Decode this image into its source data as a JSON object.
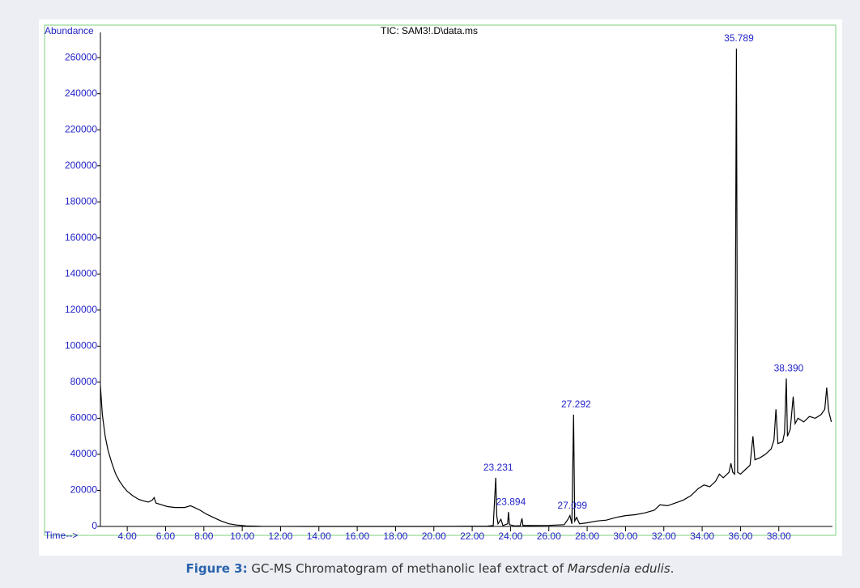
{
  "chart_data": {
    "type": "line",
    "title": "TIC: SAM3!.D\\data.ms",
    "y_label": "Abundance",
    "x_label": "Time-->",
    "color": "#000000",
    "xlim": [
      2.6,
      40.8
    ],
    "ylim": [
      0,
      274000
    ],
    "xticks": [
      {
        "value": 4,
        "label": "4.00"
      },
      {
        "value": 6,
        "label": "6.00"
      },
      {
        "value": 8,
        "label": "8.00"
      },
      {
        "value": 10,
        "label": "10.00"
      },
      {
        "value": 12,
        "label": "12.00"
      },
      {
        "value": 14,
        "label": "14.00"
      },
      {
        "value": 16,
        "label": "16.00"
      },
      {
        "value": 18,
        "label": "18.00"
      },
      {
        "value": 20,
        "label": "20.00"
      },
      {
        "value": 22,
        "label": "22.00"
      },
      {
        "value": 24,
        "label": "24.00"
      },
      {
        "value": 26,
        "label": "26.00"
      },
      {
        "value": 28,
        "label": "28.00"
      },
      {
        "value": 30,
        "label": "30.00"
      },
      {
        "value": 32,
        "label": "32.00"
      },
      {
        "value": 34,
        "label": "34.00"
      },
      {
        "value": 36,
        "label": "36.00"
      },
      {
        "value": 38,
        "label": "38.00"
      }
    ],
    "yticks": [
      0,
      20000,
      40000,
      60000,
      80000,
      100000,
      120000,
      140000,
      160000,
      180000,
      200000,
      220000,
      240000,
      260000
    ],
    "x": [
      2.6,
      2.7,
      2.85,
      3.0,
      3.2,
      3.4,
      3.6,
      3.8,
      4.0,
      4.3,
      4.6,
      4.9,
      5.1,
      5.3,
      5.4,
      5.5,
      5.8,
      6.1,
      6.5,
      7.0,
      7.3,
      7.5,
      7.8,
      8.1,
      8.5,
      8.9,
      9.3,
      9.7,
      10.2,
      11,
      14,
      20,
      22.8,
      23.1,
      23.231,
      23.28,
      23.35,
      23.5,
      23.6,
      23.85,
      23.894,
      23.95,
      24.2,
      24.5,
      24.6,
      24.65,
      25,
      26,
      26.8,
      27.0,
      27.099,
      27.2,
      27.292,
      27.35,
      27.45,
      27.6,
      28,
      28.5,
      29,
      29.5,
      30,
      30.5,
      31,
      31.5,
      31.8,
      32.2,
      32.6,
      33,
      33.4,
      33.8,
      34.1,
      34.4,
      34.7,
      34.9,
      35.1,
      35.4,
      35.5,
      35.6,
      35.7,
      35.789,
      35.85,
      36.0,
      36.2,
      36.5,
      36.65,
      36.75,
      37.0,
      37.3,
      37.6,
      37.75,
      37.85,
      37.95,
      38.2,
      38.3,
      38.39,
      38.45,
      38.6,
      38.75,
      38.85,
      39.0,
      39.3,
      39.6,
      39.9,
      40.2,
      40.4,
      40.5,
      40.6,
      40.74
    ],
    "values": [
      78000,
      62000,
      50000,
      42000,
      35000,
      29000,
      25000,
      22000,
      19500,
      17000,
      15000,
      14000,
      13500,
      14500,
      16000,
      13000,
      12000,
      11000,
      10500,
      10500,
      11500,
      10500,
      9000,
      7000,
      5000,
      3000,
      1500,
      800,
      300,
      100,
      0,
      0,
      200,
      500,
      27000,
      6000,
      1500,
      4000,
      500,
      1500,
      8000,
      1000,
      300,
      400,
      4500,
      500,
      500,
      600,
      1000,
      4000,
      6000,
      1500,
      62000,
      3000,
      5000,
      1500,
      2000,
      3000,
      3500,
      5000,
      6000,
      6500,
      7500,
      9000,
      12000,
      11500,
      13000,
      14500,
      17000,
      21000,
      23000,
      22000,
      25000,
      29000,
      27000,
      30000,
      35000,
      30000,
      29000,
      265000,
      30000,
      29000,
      31000,
      34000,
      50000,
      37000,
      38000,
      40000,
      43000,
      48000,
      65000,
      46000,
      47000,
      52000,
      82000,
      50000,
      54000,
      72000,
      57000,
      60000,
      58000,
      61000,
      60000,
      62000,
      65000,
      77000,
      64000,
      58000
    ],
    "annotations": [
      {
        "label": "23.231",
        "x": 23.231,
        "y": 27000
      },
      {
        "label": "23.894",
        "x": 23.894,
        "y": 8000
      },
      {
        "label": "27.099",
        "x": 27.099,
        "y": 6000
      },
      {
        "label": "27.292",
        "x": 27.292,
        "y": 62000
      },
      {
        "label": "35.789",
        "x": 35.789,
        "y": 265000
      },
      {
        "label": "38.390",
        "x": 38.39,
        "y": 82000
      }
    ]
  },
  "caption": {
    "label": "Figure 3:",
    "text": " GC-MS Chromatogram of methanolic leaf extract of ",
    "species": "Marsdenia edulis",
    "end": "."
  }
}
